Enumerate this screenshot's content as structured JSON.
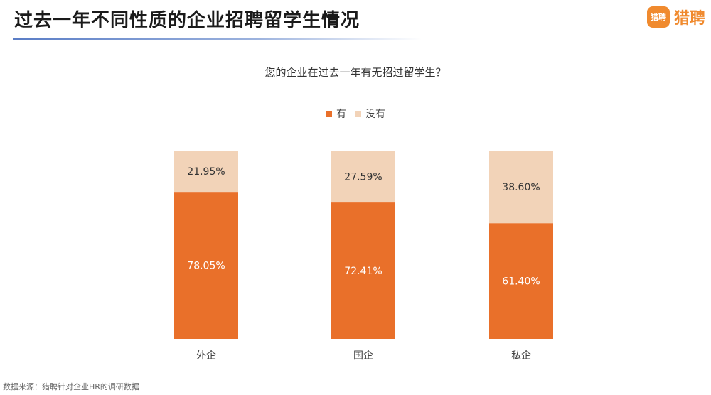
{
  "header": {
    "title": "过去一年不同性质的企业招聘留学生情况",
    "brand_badge": "猎聘",
    "brand_name": "猎聘"
  },
  "colors": {
    "yes": "#e9702a",
    "no": "#f2d3b8",
    "brand": "#f08a2e"
  },
  "chart_data": {
    "type": "bar",
    "stacked": true,
    "title": "您的企业在过去一年有无招过留学生？",
    "categories": [
      "外企",
      "国企",
      "私企"
    ],
    "series": [
      {
        "name": "有",
        "values": [
          78.05,
          72.41,
          61.4
        ],
        "labels": [
          "78.05%",
          "72.41%",
          "61.40%"
        ]
      },
      {
        "name": "没有",
        "values": [
          21.95,
          27.59,
          38.6
        ],
        "labels": [
          "21.95%",
          "27.59%",
          "38.60%"
        ]
      }
    ],
    "ylim": [
      0,
      100
    ],
    "unit": "%",
    "legend_position": "top",
    "grid": false
  },
  "footer": {
    "source": "数据来源：猎聘针对企业HR的调研数据"
  }
}
